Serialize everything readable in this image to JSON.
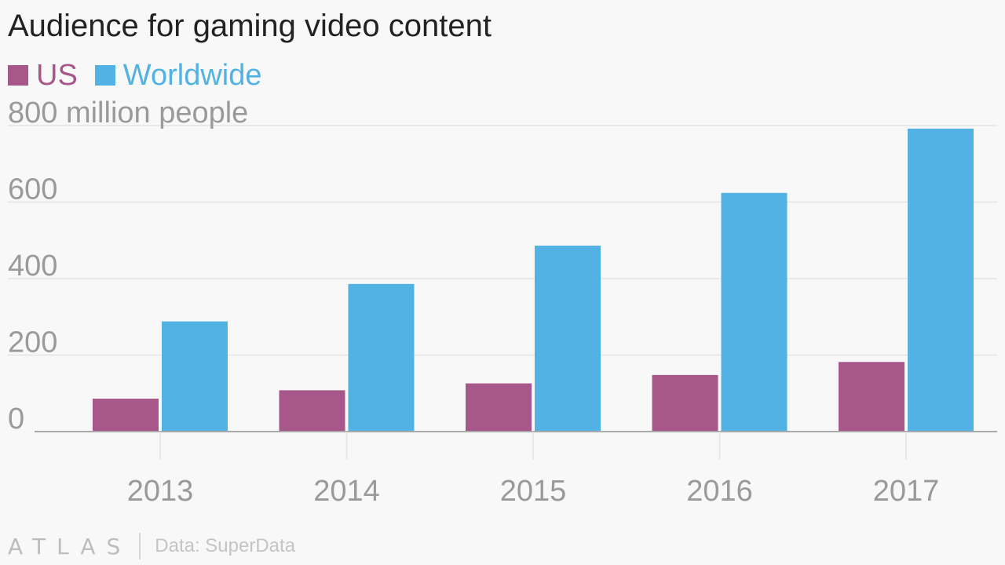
{
  "title": "Audience for gaming video content",
  "colors": {
    "us": "#a8578a",
    "worldwide": "#52b2e4",
    "grid": "#e4e4e4",
    "axis": "#aaaaaa",
    "tick_text": "#9a9a9a"
  },
  "footer": {
    "logo": "ATLAS",
    "source": "Data: SuperData"
  },
  "chart_data": {
    "type": "bar",
    "title": "Audience for gaming video content",
    "categories": [
      "2013",
      "2014",
      "2015",
      "2016",
      "2017"
    ],
    "series": [
      {
        "name": "US",
        "values": [
          86,
          108,
          126,
          148,
          182
        ]
      },
      {
        "name": "Worldwide",
        "values": [
          288,
          386,
          486,
          624,
          792
        ]
      }
    ],
    "yticks": [
      "0",
      "200",
      "400",
      "600",
      "800 million people"
    ],
    "ytick_values": [
      0,
      200,
      400,
      600,
      800
    ],
    "ylim": [
      0,
      800
    ],
    "legend_position": "top-left",
    "grid": true
  }
}
